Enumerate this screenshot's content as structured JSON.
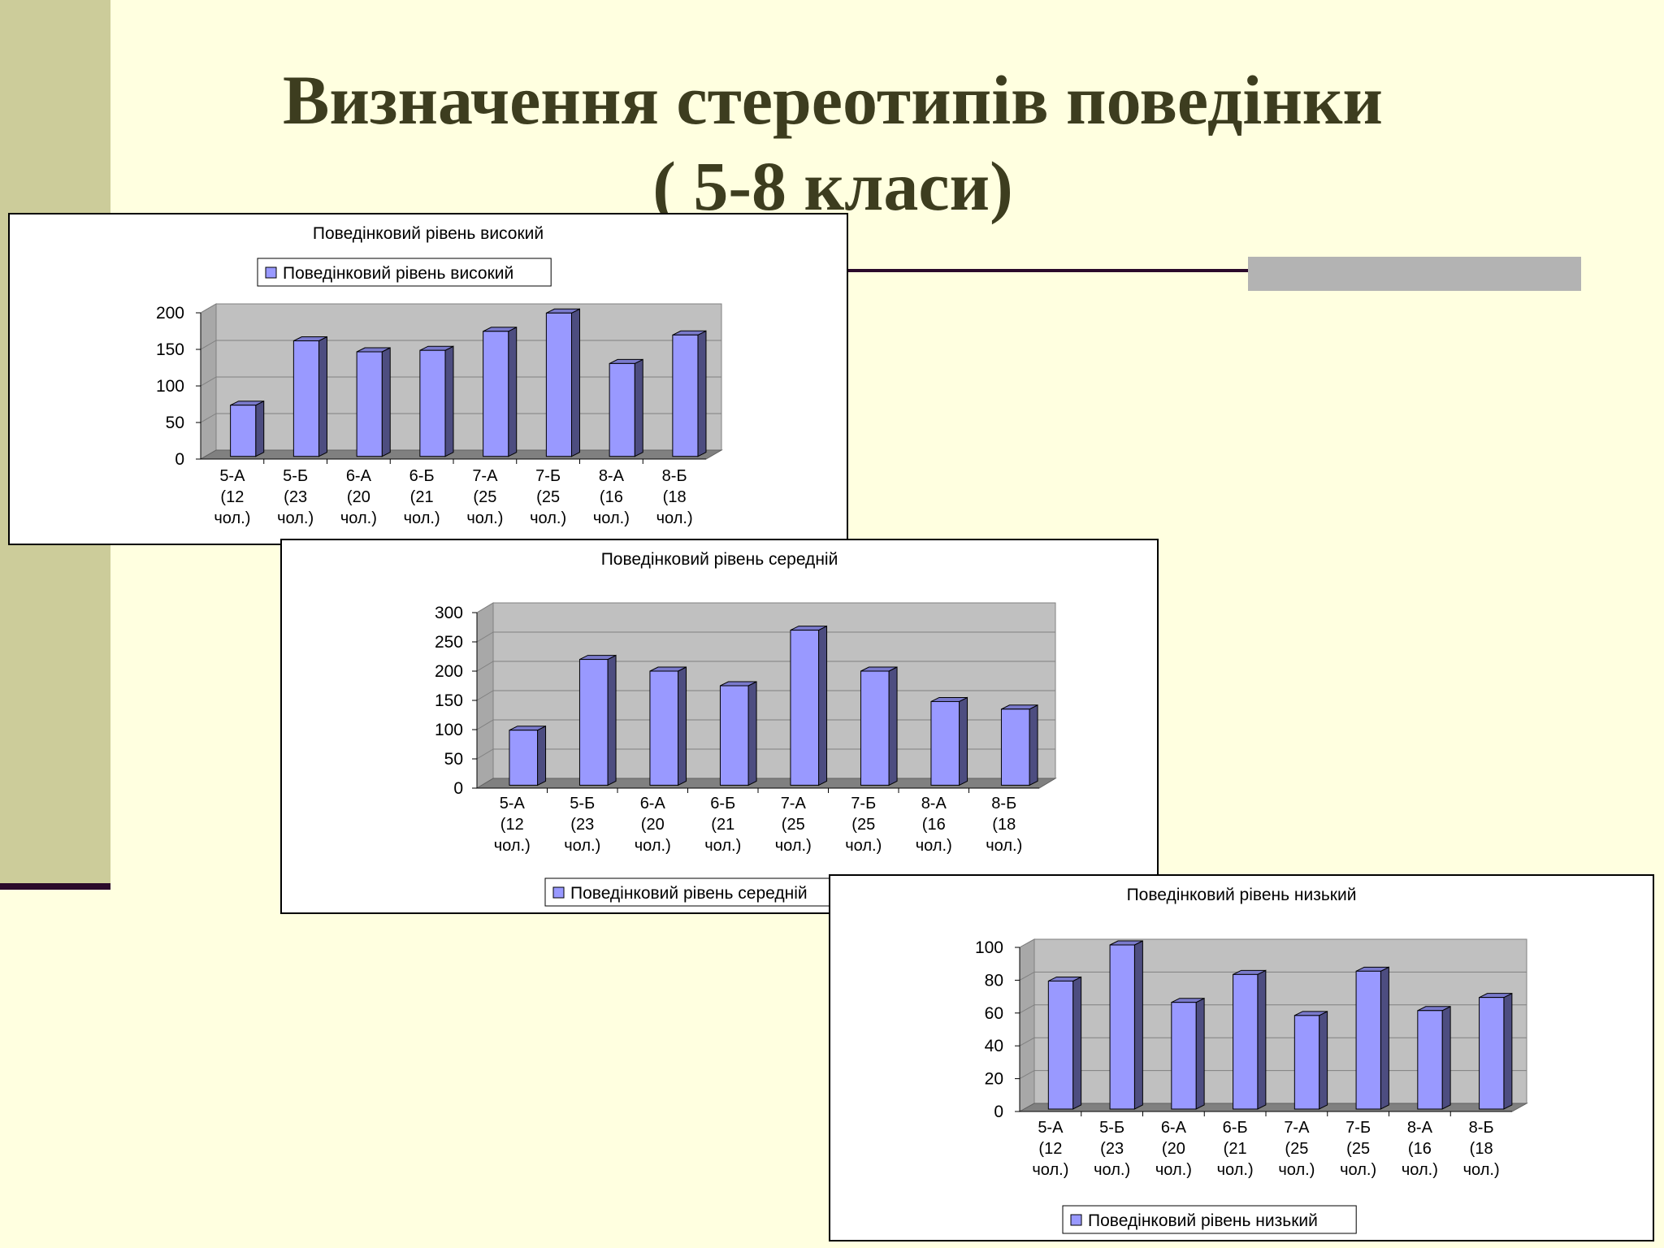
{
  "slide": {
    "title_line1": "Визначення стереотипів поведінки",
    "title_line2": "( 5-8 класи)"
  },
  "colors": {
    "background": "#ffffe0",
    "left_band": "#cccc9a",
    "accent_line": "#2b0a2b",
    "title_text": "#3d3d1f",
    "bar_front": "#9999ff",
    "bar_side": "#4d4d80",
    "plot_back": "#c0c0c0",
    "plot_floor": "#808080"
  },
  "chart_data": [
    {
      "type": "bar",
      "title": "Поведінковий рівень високий",
      "legend": "top",
      "categories": [
        "5-А (12 чол.)",
        "5-Б (23 чол.)",
        "6-А (20 чол.)",
        "6-Б (21 чол.)",
        "7-А (25 чол.)",
        "7-Б (25 чол.)",
        "8-А (16 чол.)",
        "8-Б (18 чол.)"
      ],
      "series": [
        {
          "name": "Поведінковий рівень високий",
          "values": [
            70,
            158,
            143,
            145,
            171,
            196,
            127,
            166
          ]
        }
      ],
      "yticks": [
        "200",
        "150",
        "100",
        "50",
        "0"
      ],
      "ylim": [
        0,
        200
      ],
      "grid": true
    },
    {
      "type": "bar",
      "title": "Поведінковий рівень середній",
      "legend": "bottom",
      "categories": [
        "5-А (12 чол.)",
        "5-Б (23 чол.)",
        "6-А (20 чол.)",
        "6-Б (21 чол.)",
        "7-А (25 чол.)",
        "7-Б (25 чол.)",
        "8-А (16 чол.)",
        "8-Б (18 чол.)"
      ],
      "series": [
        {
          "name": "Поведінковий рівень середній",
          "values": [
            94,
            215,
            195,
            170,
            265,
            195,
            143,
            130
          ]
        }
      ],
      "yticks": [
        "300",
        "250",
        "200",
        "150",
        "100",
        "50",
        "0"
      ],
      "ylim": [
        0,
        300
      ],
      "grid": true
    },
    {
      "type": "bar",
      "title": "Поведінковий рівень низький",
      "legend": "bottom",
      "categories": [
        "5-А (12 чол.)",
        "5-Б (23 чол.)",
        "6-А (20 чол.)",
        "6-Б (21 чол.)",
        "7-А (25 чол.)",
        "7-Б (25 чол.)",
        "8-А (16 чол.)",
        "8-Б (18 чол.)"
      ],
      "series": [
        {
          "name": "Поведінковий рівень низький",
          "values": [
            78,
            100,
            65,
            82,
            57,
            84,
            60,
            68
          ]
        }
      ],
      "yticks": [
        "100",
        "80",
        "60",
        "40",
        "20",
        "0"
      ],
      "ylim": [
        0,
        100
      ],
      "grid": true
    }
  ]
}
